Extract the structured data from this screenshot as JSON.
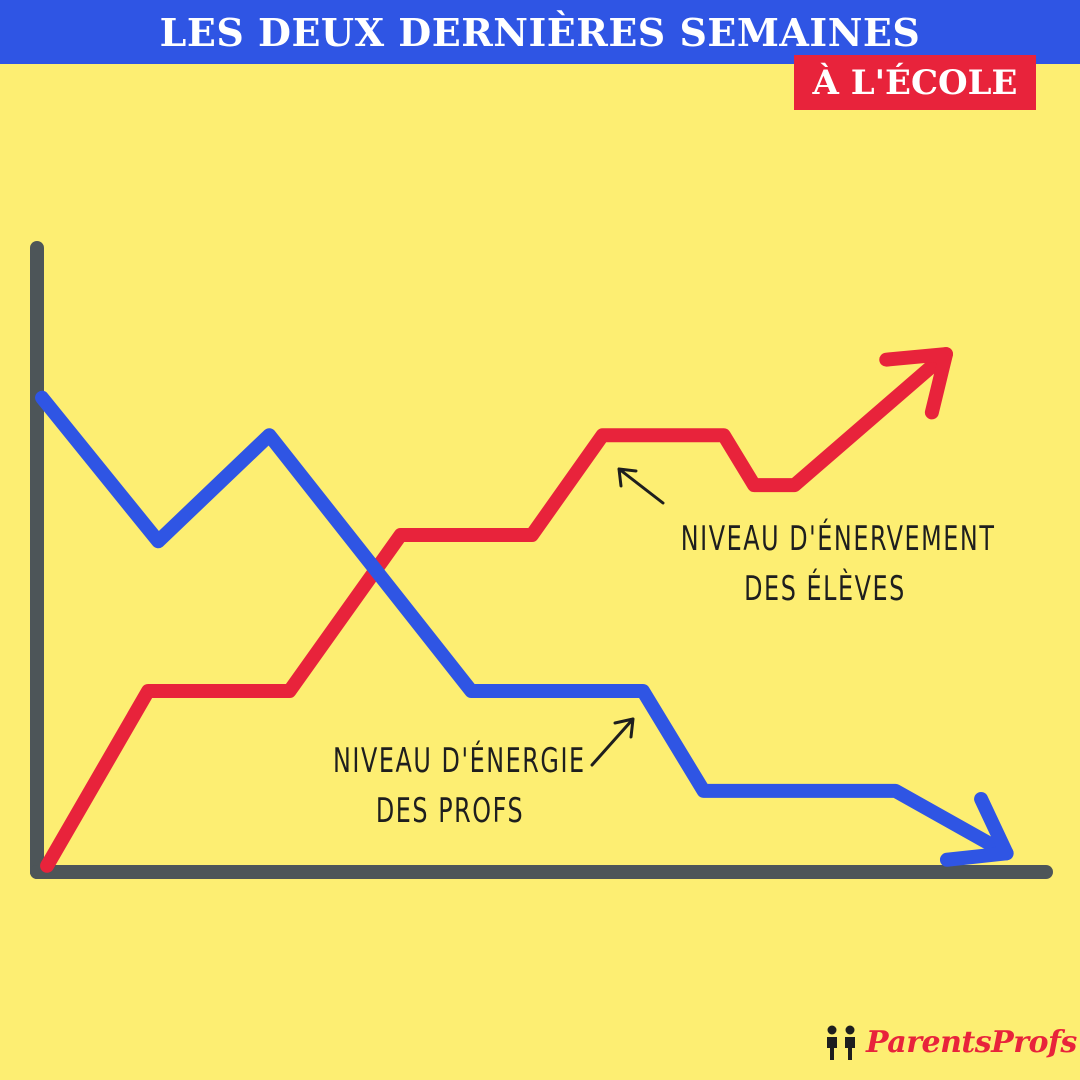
{
  "header": {
    "title": "LES DEUX DERNIÈRES SEMAINES",
    "subtitle": "À L'ÉCOLE"
  },
  "colors": {
    "background": "#FDEE72",
    "title_bar": "#2F55E4",
    "subtitle_box": "#E8233B",
    "axis": "#4D5558",
    "annotation_text": "#1E1E1E"
  },
  "chart_data": {
    "type": "line",
    "title": "LES DEUX DERNIÈRES SEMAINES",
    "subtitle": "À L'ÉCOLE",
    "xlabel": "",
    "ylabel": "",
    "grid": false,
    "legend": "none",
    "xlim": [
      0,
      10
    ],
    "ylim": [
      0,
      10
    ],
    "series": [
      {
        "name": "NIVEAU D'ÉNERVEMENT DES ÉLÈVES",
        "color": "#E8233B",
        "ends_with_arrow": true,
        "x": [
          0.1,
          1.1,
          2.5,
          3.6,
          4.9,
          5.6,
          6.8,
          7.1,
          7.5,
          9.0
        ],
        "y": [
          0.1,
          2.9,
          2.9,
          5.4,
          5.4,
          7.0,
          7.0,
          6.2,
          6.2,
          8.3
        ]
      },
      {
        "name": "NIVEAU D'ÉNERGIE DES PROFS",
        "color": "#2F55E4",
        "ends_with_arrow": true,
        "x": [
          0.05,
          1.2,
          2.3,
          4.3,
          6.0,
          6.6,
          8.5,
          9.6
        ],
        "y": [
          7.6,
          5.3,
          7.0,
          2.9,
          2.9,
          1.3,
          1.3,
          0.3
        ]
      }
    ],
    "annotations": [
      {
        "series": "NIVEAU D'ÉNERVEMENT DES ÉLÈVES",
        "lines": [
          "NIVEAU D'ÉNERVEMENT",
          "DES ÉLÈVES"
        ]
      },
      {
        "series": "NIVEAU D'ÉNERGIE DES PROFS",
        "lines": [
          "NIVEAU D'ÉNERGIE",
          "DES PROFS"
        ]
      }
    ]
  },
  "logo": {
    "text": "ParentsProfs"
  }
}
